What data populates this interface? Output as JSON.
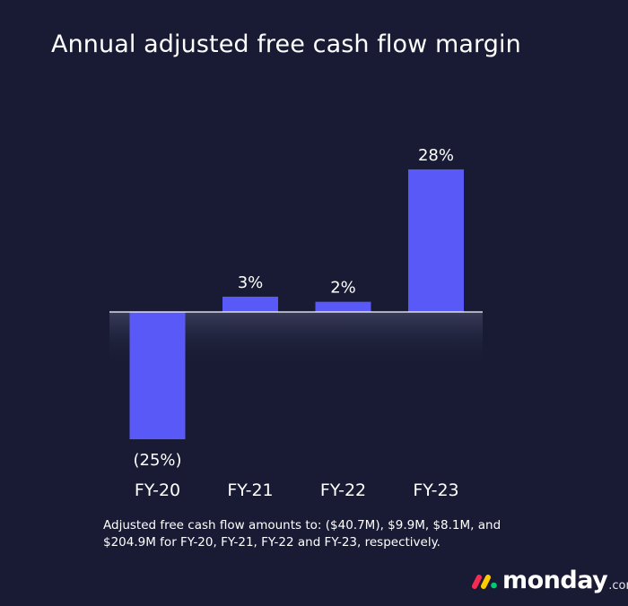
{
  "title": "Annual adjusted free cash flow margin",
  "chart_data": {
    "type": "bar",
    "categories": [
      "FY-20",
      "FY-21",
      "FY-22",
      "FY-23"
    ],
    "values": [
      -25,
      3,
      2,
      28
    ],
    "data_labels": [
      "(25%)",
      "3%",
      "2%",
      "28%"
    ],
    "unit": "%",
    "bar_color": "#5859f6",
    "grid": false,
    "legend": "none"
  },
  "footnote": "Adjusted free cash flow amounts to: ($40.7M), $9.9M, $8.1M, and $204.9M for FY-20, FY-21, FY-22 and FY-23, respectively.",
  "logo": {
    "wordmark": "monday",
    "suffix": ".com",
    "dot_colors": [
      "#f62b54",
      "#ffcb00",
      "#00ca72"
    ]
  }
}
